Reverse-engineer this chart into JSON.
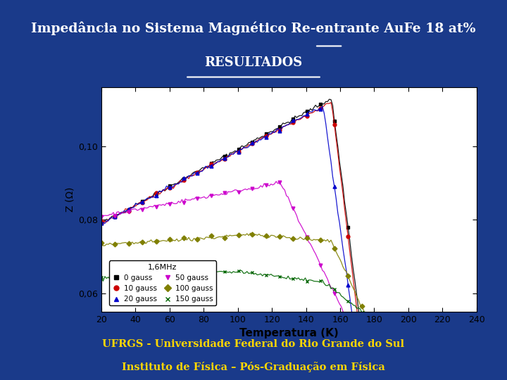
{
  "title": "Impedância no Sistema Magnético Re-entrante AuFe 18 at%",
  "subtitle": "RESULTADOS",
  "footer_line1": "UFRGS - Universidade Federal do Rio Grande do Sul",
  "footer_line2": "Instituto de Física – Pós-Graduação em Física",
  "slide_bg": "#1a3a8a",
  "plot_bg": "#ffffff",
  "xlabel": "Temperatura (K)",
  "ylabel": "Z (Ω)",
  "xlim": [
    20,
    240
  ],
  "ylim": [
    0.055,
    0.116
  ],
  "yticks": [
    0.06,
    0.08,
    0.1
  ],
  "ytick_labels": [
    "0,06",
    "0,08",
    "0,10"
  ],
  "xticks": [
    20,
    40,
    60,
    80,
    100,
    120,
    140,
    160,
    180,
    200,
    220,
    240
  ],
  "freq_label": "1,6MHz",
  "legend_entries": [
    "0 gauss",
    "10 gauss",
    "20 gauss",
    "50 gauss",
    "100 gauss",
    "150 gauss"
  ],
  "legend_colors": [
    "#000000",
    "#cc0000",
    "#0000cc",
    "#cc00cc",
    "#808000",
    "#006600"
  ],
  "legend_markers": [
    "s",
    "o",
    "^",
    "v",
    "D",
    "x"
  ]
}
